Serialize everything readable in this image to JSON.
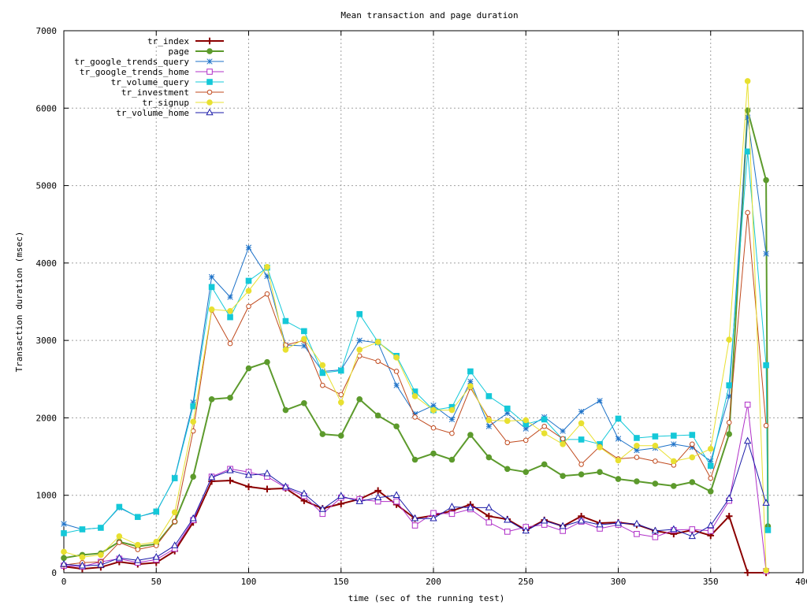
{
  "chart_data": {
    "type": "line",
    "title": "Mean transaction and page duration",
    "xlabel": "time (sec of the running test)",
    "ylabel": "Transaction duration (msec)",
    "xlim": [
      0,
      400
    ],
    "ylim": [
      0,
      7000
    ],
    "xticks": [
      0,
      50,
      100,
      150,
      200,
      250,
      300,
      350,
      400
    ],
    "yticks": [
      0,
      1000,
      2000,
      3000,
      4000,
      5000,
      6000,
      7000
    ],
    "grid": true,
    "legend_position": "top-left",
    "x": [
      0,
      10,
      20,
      30,
      40,
      50,
      60,
      70,
      80,
      90,
      100,
      110,
      120,
      130,
      140,
      150,
      160,
      170,
      180,
      190,
      200,
      210,
      220,
      230,
      240,
      250,
      260,
      270,
      280,
      290,
      300,
      310,
      320,
      330,
      340,
      350,
      360,
      370,
      380,
      381
    ],
    "series": [
      {
        "name": "tr_index",
        "color": "#8b0000",
        "marker": "plus",
        "width": 2,
        "values": [
          80,
          50,
          70,
          140,
          110,
          130,
          280,
          650,
          1180,
          1190,
          1110,
          1080,
          1090,
          930,
          830,
          890,
          950,
          1060,
          880,
          700,
          740,
          800,
          880,
          730,
          690,
          550,
          680,
          600,
          730,
          640,
          650,
          620,
          540,
          500,
          550,
          480,
          730,
          0,
          0,
          null
        ]
      },
      {
        "name": "page",
        "color": "#5c9a2c",
        "marker": "filledcircle",
        "width": 2,
        "values": [
          190,
          230,
          250,
          400,
          340,
          370,
          660,
          1240,
          2240,
          2260,
          2640,
          2720,
          2100,
          2190,
          1790,
          1770,
          2240,
          2030,
          1890,
          1460,
          1540,
          1460,
          1780,
          1490,
          1340,
          1300,
          1400,
          1250,
          1270,
          1300,
          1210,
          1180,
          1150,
          1120,
          1170,
          1050,
          1790,
          5970,
          5070,
          600
        ]
      },
      {
        "name": "tr_google_trends_query",
        "color": "#1e72c8",
        "marker": "star",
        "width": 1,
        "values": [
          630,
          560,
          580,
          840,
          720,
          780,
          1230,
          2200,
          3820,
          3560,
          4200,
          3830,
          2940,
          2930,
          2600,
          2620,
          3000,
          2970,
          2420,
          2050,
          2160,
          1980,
          2470,
          1890,
          2060,
          1860,
          2010,
          1830,
          2080,
          2220,
          1730,
          1580,
          1610,
          1660,
          1620,
          1440,
          2280,
          5880,
          4120,
          null
        ]
      },
      {
        "name": "tr_google_trends_home",
        "color": "#b030c8",
        "marker": "square",
        "width": 1,
        "values": [
          90,
          80,
          140,
          180,
          130,
          170,
          310,
          680,
          1240,
          1340,
          1300,
          1240,
          1100,
          990,
          760,
          970,
          950,
          920,
          920,
          610,
          770,
          760,
          820,
          650,
          530,
          590,
          620,
          540,
          660,
          570,
          620,
          500,
          460,
          550,
          560,
          540,
          930,
          2170,
          20,
          null
        ]
      },
      {
        "name": "tr_volume_query",
        "color": "#14c8d8",
        "marker": "filledsquare",
        "width": 1,
        "values": [
          510,
          560,
          580,
          850,
          720,
          790,
          1220,
          2150,
          3690,
          3300,
          3770,
          3940,
          3250,
          3120,
          2580,
          2610,
          3340,
          2980,
          2800,
          2340,
          2100,
          2140,
          2600,
          2280,
          2120,
          1920,
          1980,
          1720,
          1720,
          1660,
          1990,
          1740,
          1760,
          1770,
          1780,
          1380,
          2420,
          5440,
          2680,
          550
        ]
      },
      {
        "name": "tr_investment",
        "color": "#c04a1e",
        "marker": "circle",
        "width": 1,
        "values": [
          100,
          130,
          140,
          390,
          300,
          350,
          660,
          1830,
          3390,
          2960,
          3440,
          3600,
          2940,
          3000,
          2420,
          2300,
          2800,
          2730,
          2600,
          2010,
          1870,
          1800,
          2390,
          1990,
          1680,
          1710,
          1890,
          1730,
          1400,
          1630,
          1470,
          1490,
          1440,
          1390,
          1660,
          1220,
          1940,
          4650,
          1900,
          null
        ]
      },
      {
        "name": "tr_signup",
        "color": "#e8e030",
        "marker": "filledcircle",
        "width": 1,
        "values": [
          270,
          200,
          230,
          470,
          360,
          400,
          780,
          1950,
          3400,
          3380,
          3640,
          3950,
          2880,
          3020,
          2680,
          2200,
          2880,
          2980,
          2780,
          2280,
          2100,
          2100,
          2410,
          1970,
          1960,
          1970,
          1800,
          1660,
          1930,
          1620,
          1450,
          1640,
          1640,
          1440,
          1490,
          1600,
          3010,
          6350,
          30,
          null
        ]
      },
      {
        "name": "tr_volume_home",
        "color": "#1a1aa8",
        "marker": "triangle",
        "width": 1,
        "values": [
          110,
          90,
          100,
          190,
          160,
          200,
          350,
          700,
          1230,
          1320,
          1260,
          1280,
          1110,
          1020,
          820,
          990,
          920,
          970,
          1000,
          700,
          700,
          850,
          840,
          840,
          680,
          540,
          670,
          600,
          670,
          620,
          640,
          630,
          540,
          560,
          470,
          610,
          960,
          1700,
          900,
          null
        ]
      }
    ]
  }
}
